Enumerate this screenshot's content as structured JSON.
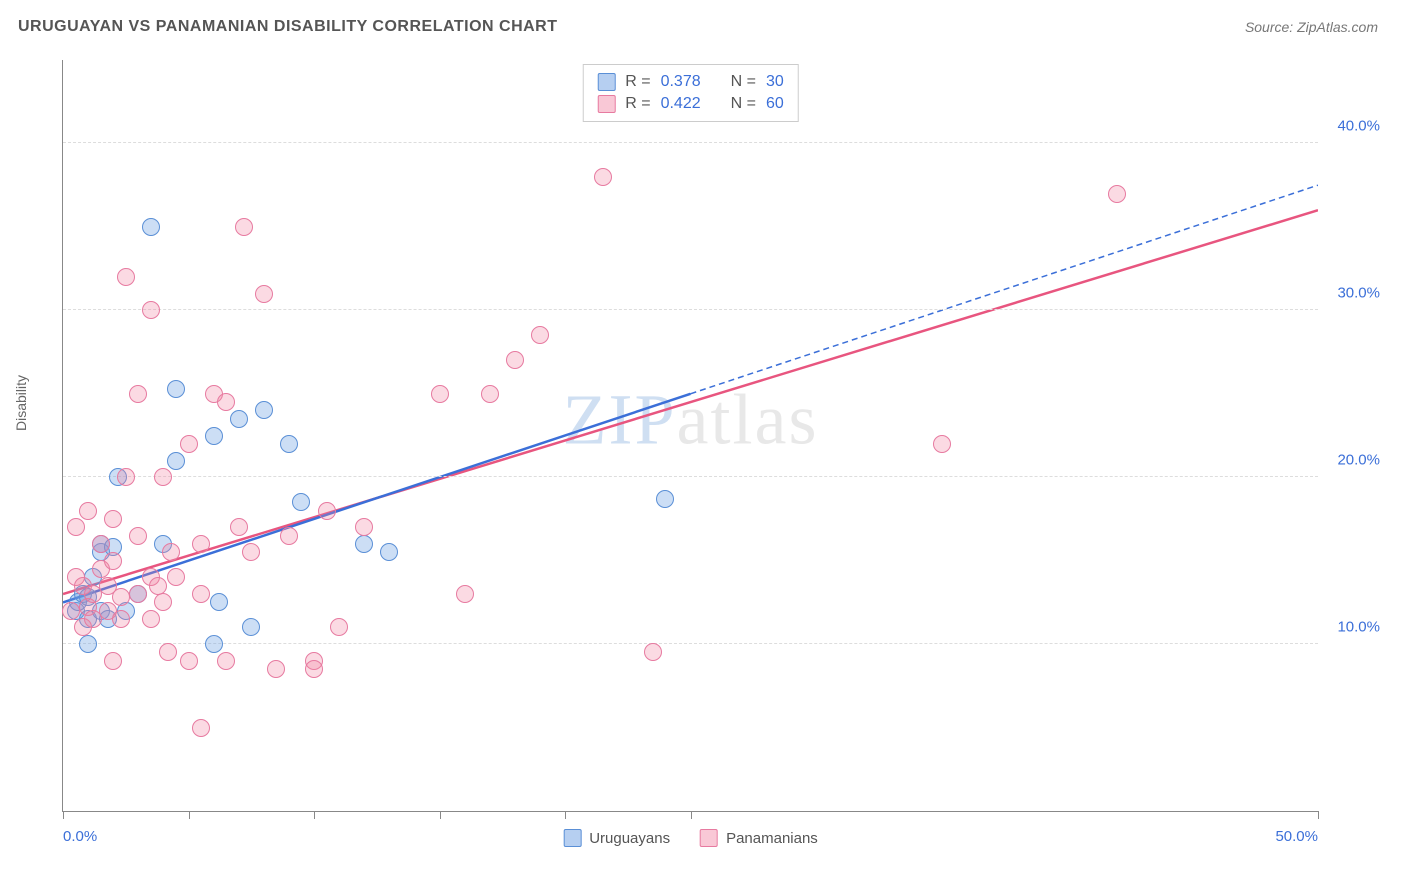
{
  "title": "URUGUAYAN VS PANAMANIAN DISABILITY CORRELATION CHART",
  "source_label": "Source: ZipAtlas.com",
  "y_axis_label": "Disability",
  "watermark_part1": "ZIP",
  "watermark_part2": "atlas",
  "chart": {
    "type": "scatter",
    "xlim": [
      0,
      50
    ],
    "ylim": [
      0,
      45
    ],
    "x_ticks": [
      0,
      5,
      10,
      15,
      20,
      25,
      50
    ],
    "x_tick_labels": {
      "0": "0.0%",
      "50": "50.0%"
    },
    "y_gridlines": [
      10,
      20,
      30,
      40
    ],
    "y_tick_labels": {
      "10": "10.0%",
      "20": "20.0%",
      "30": "30.0%",
      "40": "40.0%"
    },
    "background_color": "#ffffff",
    "grid_color": "#dddddd",
    "axis_color": "#888888",
    "label_color": "#3b6fd8",
    "point_radius": 9,
    "series": [
      {
        "name": "Uruguayans",
        "color_fill": "rgba(109,160,227,0.35)",
        "color_stroke": "#5a8fd6",
        "r": 0.378,
        "n": 30,
        "trend": {
          "x1": 0,
          "y1": 12.5,
          "x2": 25,
          "y2": 25,
          "dash_to_x": 50,
          "dash_to_y": 37.5,
          "stroke": "#3b6fd8",
          "width": 2.5
        },
        "points": [
          [
            0.5,
            12
          ],
          [
            0.6,
            12.5
          ],
          [
            0.8,
            13
          ],
          [
            1,
            11.5
          ],
          [
            1,
            12.8
          ],
          [
            1.2,
            14
          ],
          [
            1.5,
            12
          ],
          [
            1.5,
            15.5
          ],
          [
            1.5,
            16
          ],
          [
            1.8,
            11.5
          ],
          [
            2,
            15.8
          ],
          [
            2.2,
            20
          ],
          [
            2.5,
            12
          ],
          [
            3,
            13
          ],
          [
            3.5,
            35
          ],
          [
            4,
            16
          ],
          [
            4.5,
            21
          ],
          [
            4.5,
            25.3
          ],
          [
            6,
            10
          ],
          [
            6,
            22.5
          ],
          [
            6.2,
            12.5
          ],
          [
            7,
            23.5
          ],
          [
            7.5,
            11
          ],
          [
            8,
            24
          ],
          [
            9,
            22
          ],
          [
            9.5,
            18.5
          ],
          [
            12,
            16
          ],
          [
            13,
            15.5
          ],
          [
            24,
            18.7
          ],
          [
            1,
            10
          ]
        ]
      },
      {
        "name": "Panamanians",
        "color_fill": "rgba(241,133,163,0.3)",
        "color_stroke": "#e77aa0",
        "r": 0.422,
        "n": 60,
        "trend": {
          "x1": 0,
          "y1": 13,
          "x2": 50,
          "y2": 36,
          "stroke": "#e8557f",
          "width": 2.5
        },
        "points": [
          [
            0.3,
            12
          ],
          [
            0.5,
            14
          ],
          [
            0.5,
            17
          ],
          [
            0.8,
            11
          ],
          [
            0.8,
            13.5
          ],
          [
            1,
            12.2
          ],
          [
            1,
            18
          ],
          [
            1.2,
            11.5
          ],
          [
            1.2,
            13
          ],
          [
            1.5,
            14.5
          ],
          [
            1.5,
            16
          ],
          [
            1.8,
            12
          ],
          [
            1.8,
            13.5
          ],
          [
            2,
            15
          ],
          [
            2,
            17.5
          ],
          [
            2,
            9
          ],
          [
            2.3,
            11.5
          ],
          [
            2.3,
            12.8
          ],
          [
            2.5,
            20
          ],
          [
            2.5,
            32
          ],
          [
            3,
            13
          ],
          [
            3,
            16.5
          ],
          [
            3,
            25
          ],
          [
            3.5,
            11.5
          ],
          [
            3.5,
            14
          ],
          [
            3.5,
            30
          ],
          [
            4,
            12.5
          ],
          [
            4,
            20
          ],
          [
            4.2,
            9.5
          ],
          [
            4.5,
            14
          ],
          [
            5,
            9
          ],
          [
            5,
            22
          ],
          [
            5.5,
            13
          ],
          [
            5.5,
            16
          ],
          [
            5.5,
            5
          ],
          [
            6,
            25
          ],
          [
            6.5,
            9
          ],
          [
            6.5,
            24.5
          ],
          [
            7,
            17
          ],
          [
            7.2,
            35
          ],
          [
            7.5,
            15.5
          ],
          [
            8,
            31
          ],
          [
            8.5,
            8.5
          ],
          [
            9,
            16.5
          ],
          [
            10,
            9
          ],
          [
            10,
            8.5
          ],
          [
            10.5,
            18
          ],
          [
            11,
            11
          ],
          [
            12,
            17
          ],
          [
            15,
            25
          ],
          [
            16,
            13
          ],
          [
            17,
            25
          ],
          [
            18,
            27
          ],
          [
            19,
            28.5
          ],
          [
            21.5,
            38
          ],
          [
            23.5,
            9.5
          ],
          [
            35,
            22
          ],
          [
            42,
            37
          ],
          [
            3.8,
            13.5
          ],
          [
            4.3,
            15.5
          ]
        ]
      }
    ]
  },
  "legend_top": {
    "rows": [
      {
        "swatch": "blue",
        "r_label": "R =",
        "r_value": "0.378",
        "n_label": "N =",
        "n_value": "30"
      },
      {
        "swatch": "pink",
        "r_label": "R =",
        "r_value": "0.422",
        "n_label": "N =",
        "n_value": "60"
      }
    ]
  },
  "legend_bottom": {
    "items": [
      {
        "swatch": "blue",
        "label": "Uruguayans"
      },
      {
        "swatch": "pink",
        "label": "Panamanians"
      }
    ]
  }
}
